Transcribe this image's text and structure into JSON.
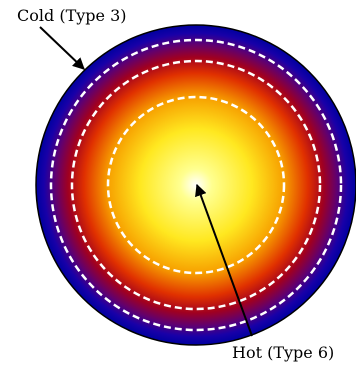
{
  "labels": {
    "cold": "Cold (Type 3)",
    "hot": "Hot (Type 6)"
  }
}
